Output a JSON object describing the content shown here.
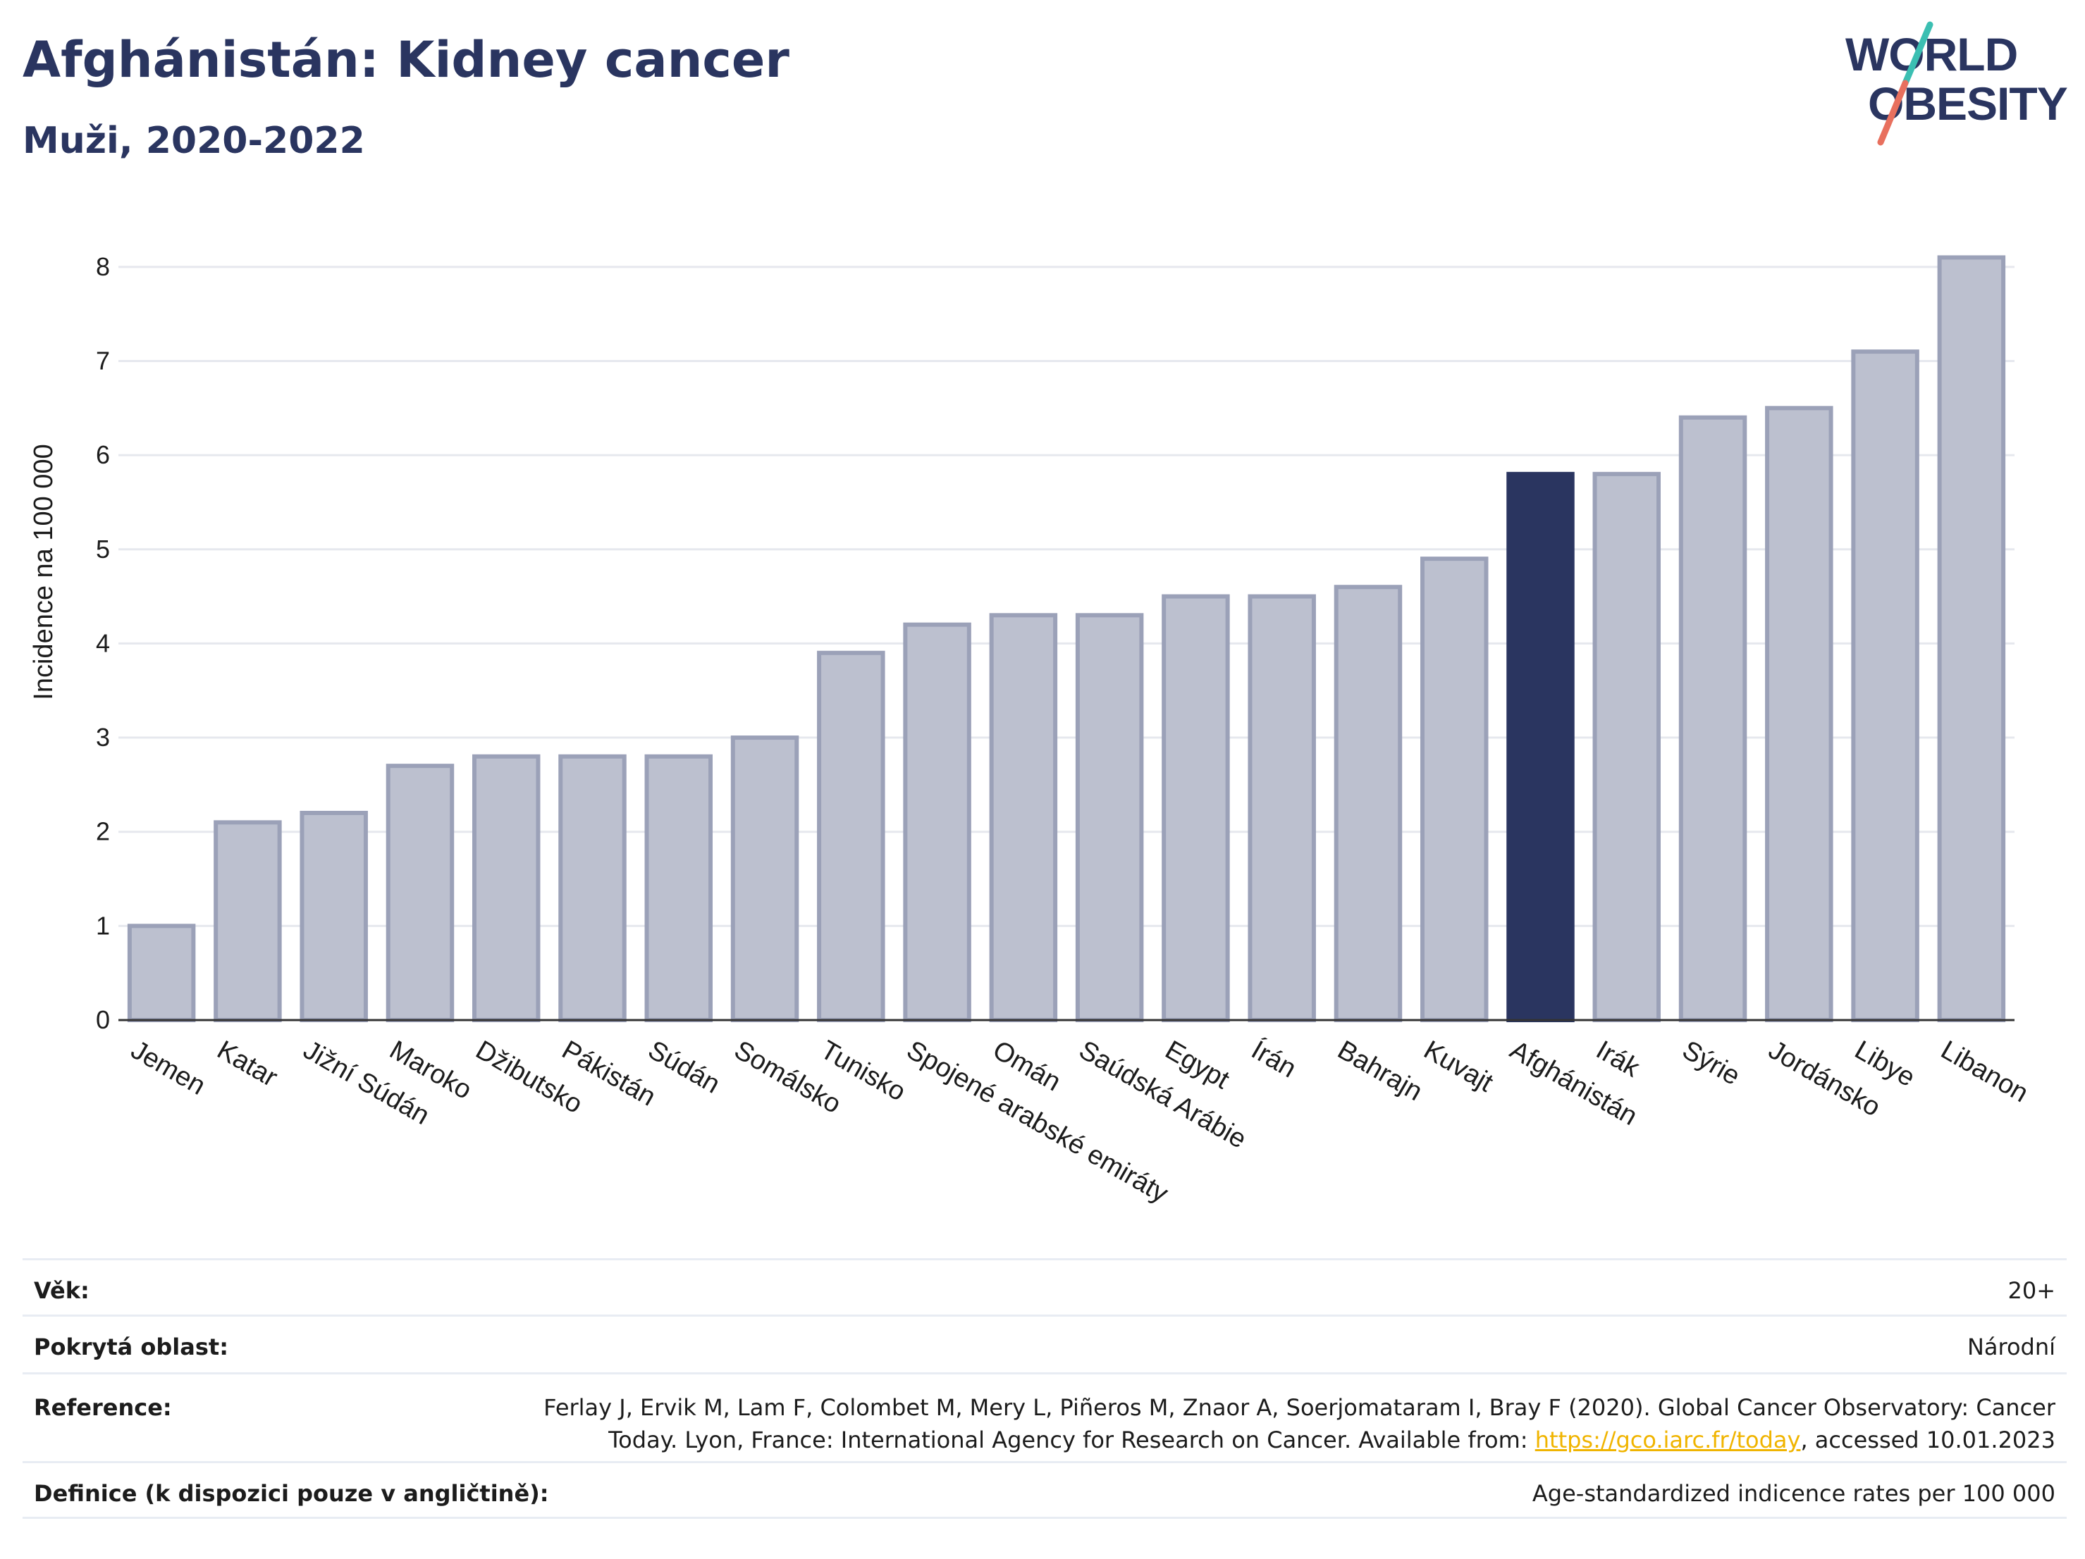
{
  "header": {
    "title": "Afghánistán: Kidney cancer",
    "subtitle": "Muži, 2020-2022"
  },
  "logo": {
    "line1": "WORLD",
    "line2": "OBESITY",
    "colors": {
      "text": "#2a3560",
      "teal": "#3bbfb2",
      "coral": "#e8705e"
    }
  },
  "colors": {
    "bar_default": "#bcc0cf",
    "bar_default_border": "#9ba1b8",
    "bar_highlight": "#2a3560",
    "grid": "#e6e8ee",
    "axis": "#333333"
  },
  "chart_data": {
    "type": "bar",
    "title": "Afghánistán: Kidney cancer",
    "subtitle": "Muži, 2020-2022",
    "xlabel": "",
    "ylabel": "Incidence na 100 000",
    "ylim": [
      0,
      8.5
    ],
    "yticks": [
      0,
      1,
      2,
      3,
      4,
      5,
      6,
      7,
      8
    ],
    "highlight": "Afghánistán",
    "grid": true,
    "categories": [
      "Jemen",
      "Katar",
      "Jižní Súdán",
      "Maroko",
      "Džibutsko",
      "Pákistán",
      "Súdán",
      "Somálsko",
      "Tunisko",
      "Spojené arabské emiráty",
      "Omán",
      "Saúdská Arábie",
      "Egypt",
      "Írán",
      "Bahrajn",
      "Kuvajt",
      "Afghánistán",
      "Irák",
      "Sýrie",
      "Jordánsko",
      "Libye",
      "Libanon"
    ],
    "values": [
      1.0,
      2.1,
      2.2,
      2.7,
      2.8,
      2.8,
      2.8,
      3.0,
      3.9,
      4.2,
      4.3,
      4.3,
      4.5,
      4.5,
      4.6,
      4.9,
      5.8,
      5.8,
      6.4,
      6.5,
      7.1,
      8.1
    ]
  },
  "info": {
    "rows": [
      {
        "label": "Věk:",
        "value": "20+"
      },
      {
        "label": "Pokrytá oblast:",
        "value": "Národní"
      },
      {
        "label": "Reference:",
        "value_before": "Ferlay J, Ervik M, Lam F, Colombet M, Mery L, Piñeros M, Znaor A, Soerjomataram I, Bray F (2020). Global Cancer Observatory: Cancer Today. Lyon, France: International Agency for Research on Cancer. Available from: ",
        "link": "https://gco.iarc.fr/today",
        "value_after": ", accessed 10.01.2023"
      },
      {
        "label": "Definice (k dispozici pouze v angličtině):",
        "value": "Age-standardized indicence rates per 100 000"
      }
    ]
  }
}
